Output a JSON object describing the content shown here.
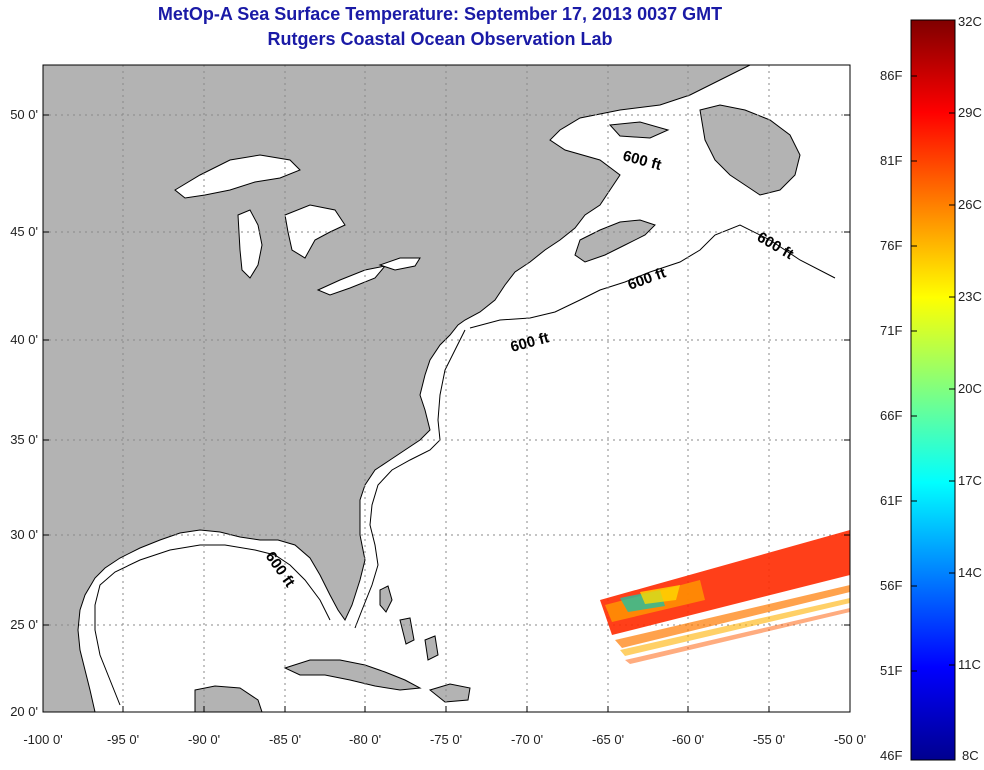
{
  "title": "MetOp-A Sea Surface Temperature:  September 17, 2013 0037 GMT",
  "subtitle": "Rutgers Coastal Ocean Observation Lab",
  "map": {
    "lat_labels": [
      "50 0'",
      "45 0'",
      "40 0'",
      "35 0'",
      "30 0'",
      "25 0'",
      "20 0'"
    ],
    "lon_labels": [
      "-100 0'",
      "-95 0'",
      "-90 0'",
      "-85 0'",
      "-80 0'",
      "-75 0'",
      "-70 0'",
      "-65 0'",
      "-60 0'",
      "-55 0'",
      "-50 0'"
    ],
    "contour_label": "600 ft",
    "land_color": "#b3b3b3",
    "ocean_color": "#ffffff"
  },
  "colorbar": {
    "left_labels": [
      "86F",
      "81F",
      "76F",
      "71F",
      "66F",
      "61F",
      "56F",
      "51F",
      "46F"
    ],
    "right_labels": [
      "32C",
      "29C",
      "26C",
      "23C",
      "20C",
      "17C",
      "14C",
      "11C",
      "8C"
    ],
    "colors": [
      "#7f0000",
      "#ff0000",
      "#ff8000",
      "#ffff00",
      "#80ff80",
      "#00ffff",
      "#0080ff",
      "#0000ff",
      "#00008f"
    ]
  }
}
